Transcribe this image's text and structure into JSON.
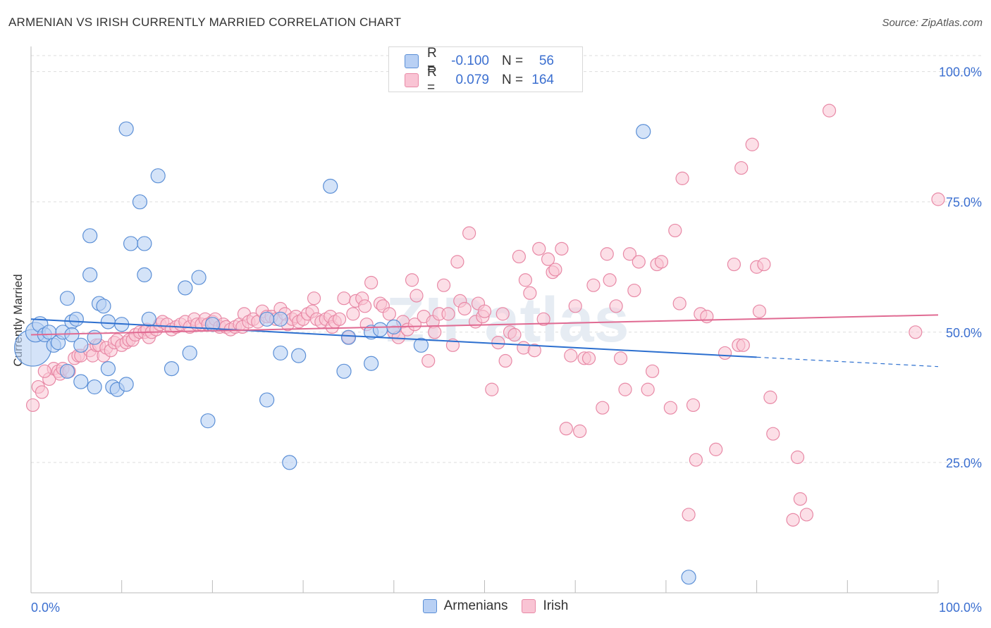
{
  "title": "ARMENIAN VS IRISH CURRENTLY MARRIED CORRELATION CHART",
  "source": "Source: ZipAtlas.com",
  "watermark": "ZIPatlas",
  "legend_top": {
    "rows": [
      {
        "r_label": "R =",
        "r_value": "-0.100",
        "n_label": "N =",
        "n_value": "56"
      },
      {
        "r_label": "R =",
        "r_value": "0.079",
        "n_label": "N =",
        "n_value": "164"
      }
    ]
  },
  "colors": {
    "armenian_fill": "#b8d0f4",
    "armenian_stroke": "#5b8fd6",
    "armenian_line": "#2c6fcf",
    "irish_fill": "#f9c4d4",
    "irish_stroke": "#e889a6",
    "irish_line": "#e06a92",
    "tick_label": "#3b6fd0",
    "grid": "#dddddd"
  },
  "chart_data": {
    "type": "scatter",
    "title": "ARMENIAN VS IRISH CURRENTLY MARRIED CORRELATION CHART",
    "xlabel": "",
    "ylabel": "Currently Married",
    "xlim": [
      0,
      100
    ],
    "ylim": [
      0,
      104
    ],
    "x_tick_labels": [
      {
        "value": 0,
        "label": "0.0%"
      },
      {
        "value": 100,
        "label": "100.0%"
      }
    ],
    "y_tick_labels": [
      {
        "value": 25,
        "label": "25.0%"
      },
      {
        "value": 50,
        "label": "50.0%"
      },
      {
        "value": 75,
        "label": "75.0%"
      },
      {
        "value": 100,
        "label": "100.0%"
      }
    ],
    "grid": true,
    "legend_position": "bottom-center",
    "series": [
      {
        "name": "Armenians",
        "r": -0.1,
        "n": 56,
        "trend": {
          "x0": 0,
          "y0": 52.5,
          "x1": 80,
          "y1": 45.2,
          "dash_x1": 100,
          "dash_y1": 43.4
        },
        "points": [
          [
            0.2,
            47,
            26
          ],
          [
            0.5,
            50,
            14
          ],
          [
            1,
            51.5,
            11
          ],
          [
            1.5,
            49.5,
            10
          ],
          [
            2,
            50,
            10
          ],
          [
            2.5,
            47.5,
            10
          ],
          [
            3,
            48,
            10
          ],
          [
            3.5,
            50,
            10
          ],
          [
            4,
            42.5,
            10
          ],
          [
            4,
            56.5,
            10
          ],
          [
            4.5,
            52,
            10
          ],
          [
            4.5,
            49.5,
            10
          ],
          [
            5,
            52.5,
            10
          ],
          [
            5.5,
            47.5,
            10
          ],
          [
            5.5,
            40.5,
            10
          ],
          [
            6.5,
            61,
            10
          ],
          [
            6.5,
            68.5,
            10
          ],
          [
            7,
            39.5,
            10
          ],
          [
            7,
            49,
            10
          ],
          [
            7.5,
            55.5,
            10
          ],
          [
            8,
            55,
            10
          ],
          [
            8.5,
            52,
            10
          ],
          [
            8.5,
            43,
            10
          ],
          [
            9,
            39.5,
            10
          ],
          [
            9.5,
            39,
            10
          ],
          [
            10,
            51.5,
            10
          ],
          [
            10.5,
            89,
            10
          ],
          [
            10.5,
            40,
            10
          ],
          [
            11,
            67,
            10
          ],
          [
            12,
            75,
            10
          ],
          [
            12.5,
            61,
            10
          ],
          [
            12.5,
            67,
            10
          ],
          [
            13,
            52.5,
            10
          ],
          [
            14,
            80,
            10
          ],
          [
            15.5,
            43,
            10
          ],
          [
            17,
            58.5,
            10
          ],
          [
            17.5,
            46,
            10
          ],
          [
            18.5,
            60.5,
            10
          ],
          [
            19.5,
            33,
            10
          ],
          [
            26,
            37,
            10
          ],
          [
            27.5,
            46,
            10
          ],
          [
            27.5,
            52.5,
            10
          ],
          [
            28.5,
            25,
            10
          ],
          [
            29.5,
            45.5,
            10
          ],
          [
            33,
            78,
            10
          ],
          [
            34.5,
            42.5,
            10
          ],
          [
            35,
            49,
            10
          ],
          [
            37.5,
            50,
            10
          ],
          [
            37.5,
            44,
            10
          ],
          [
            38.5,
            50.5,
            10
          ],
          [
            40,
            51,
            10
          ],
          [
            43,
            47.5,
            10
          ],
          [
            67.5,
            88.5,
            10
          ],
          [
            72.5,
            3,
            10
          ],
          [
            26,
            52.5,
            10
          ],
          [
            20,
            51.5,
            10
          ]
        ]
      },
      {
        "name": "Irish",
        "r": 0.079,
        "n": 164,
        "trend": {
          "x0": 0,
          "y0": 49.5,
          "x1": 100,
          "y1": 53.3
        },
        "points": [
          [
            0.2,
            36
          ],
          [
            0.8,
            39.5
          ],
          [
            1.2,
            38.5
          ],
          [
            2,
            41
          ],
          [
            2.5,
            43
          ],
          [
            3,
            42.5
          ],
          [
            3.2,
            42
          ],
          [
            3.5,
            43
          ],
          [
            4.2,
            42.5
          ],
          [
            4.8,
            45
          ],
          [
            5.2,
            45.5
          ],
          [
            5.5,
            45.5
          ],
          [
            6.5,
            46.5
          ],
          [
            6.8,
            45.5
          ],
          [
            7.2,
            47.5
          ],
          [
            7.5,
            47.5
          ],
          [
            8,
            45.5
          ],
          [
            8.3,
            47
          ],
          [
            8.8,
            46.5
          ],
          [
            9.2,
            48
          ],
          [
            9.5,
            48.5
          ],
          [
            10,
            47.5
          ],
          [
            10.5,
            48
          ],
          [
            10.8,
            48.5
          ],
          [
            11.2,
            48.5
          ],
          [
            11.5,
            49.5
          ],
          [
            12,
            50
          ],
          [
            12.5,
            50
          ],
          [
            12.8,
            50.5
          ],
          [
            13,
            49
          ],
          [
            13.3,
            50
          ],
          [
            13.8,
            50.5
          ],
          [
            14.2,
            51.5
          ],
          [
            14.5,
            52
          ],
          [
            15,
            51.5
          ],
          [
            15.5,
            50.5
          ],
          [
            16,
            51
          ],
          [
            16.5,
            51.5
          ],
          [
            17,
            52
          ],
          [
            17.5,
            51
          ],
          [
            18,
            52.5
          ],
          [
            18.3,
            51.5
          ],
          [
            18.8,
            51.5
          ],
          [
            19.2,
            52.5
          ],
          [
            19.5,
            51.5
          ],
          [
            20,
            52
          ],
          [
            20.3,
            52.5
          ],
          [
            20.8,
            51
          ],
          [
            21.2,
            51.5
          ],
          [
            21.5,
            51
          ],
          [
            22,
            50.5
          ],
          [
            22.5,
            51
          ],
          [
            23,
            51.5
          ],
          [
            23.3,
            51
          ],
          [
            23.5,
            53.5
          ],
          [
            24,
            52
          ],
          [
            24.5,
            52.5
          ],
          [
            25,
            52
          ],
          [
            25.5,
            54
          ],
          [
            26,
            53
          ],
          [
            26.5,
            53
          ],
          [
            27,
            52.5
          ],
          [
            27.5,
            54.5
          ],
          [
            28,
            53.5
          ],
          [
            28.3,
            51.5
          ],
          [
            28.8,
            52.5
          ],
          [
            29.2,
            53
          ],
          [
            29.5,
            52
          ],
          [
            30,
            52.5
          ],
          [
            30.5,
            53.5
          ],
          [
            31,
            54
          ],
          [
            31.2,
            56.5
          ],
          [
            31.5,
            52.5
          ],
          [
            32,
            52
          ],
          [
            32.5,
            52.5
          ],
          [
            33,
            53
          ],
          [
            33.2,
            51
          ],
          [
            33.5,
            52
          ],
          [
            34,
            52.5
          ],
          [
            34.5,
            56.5
          ],
          [
            35,
            49
          ],
          [
            35.5,
            53.5
          ],
          [
            35.8,
            56
          ],
          [
            36.5,
            56.5
          ],
          [
            36.8,
            55
          ],
          [
            37,
            51.5
          ],
          [
            37.5,
            59.5
          ],
          [
            38.5,
            55.5
          ],
          [
            38.8,
            55
          ],
          [
            39.5,
            53.5
          ],
          [
            40,
            50
          ],
          [
            40.5,
            49
          ],
          [
            41,
            52
          ],
          [
            41.5,
            50.5
          ],
          [
            42,
            60
          ],
          [
            42.3,
            51.5
          ],
          [
            42.5,
            57
          ],
          [
            43.3,
            53
          ],
          [
            43.8,
            44.5
          ],
          [
            44.3,
            52
          ],
          [
            44.5,
            50
          ],
          [
            45,
            53.5
          ],
          [
            45.5,
            59
          ],
          [
            46,
            53.5
          ],
          [
            46.5,
            47.5
          ],
          [
            47,
            63.5
          ],
          [
            47.3,
            56
          ],
          [
            47.8,
            54.5
          ],
          [
            48.3,
            69
          ],
          [
            49,
            52
          ],
          [
            49.3,
            55.5
          ],
          [
            49.8,
            53
          ],
          [
            50,
            54
          ],
          [
            50.8,
            39
          ],
          [
            51.5,
            48
          ],
          [
            52,
            53.5
          ],
          [
            52.3,
            44.5
          ],
          [
            52.8,
            50
          ],
          [
            53.3,
            49.5
          ],
          [
            53.8,
            64.5
          ],
          [
            54.3,
            47
          ],
          [
            54.5,
            60
          ],
          [
            55,
            57.5
          ],
          [
            55.5,
            46.5
          ],
          [
            56,
            66
          ],
          [
            56.5,
            52.5
          ],
          [
            57,
            64
          ],
          [
            57.5,
            61.5
          ],
          [
            57.8,
            62
          ],
          [
            58.5,
            66
          ],
          [
            59,
            31.5
          ],
          [
            59.5,
            45.5
          ],
          [
            60,
            55
          ],
          [
            60.5,
            31
          ],
          [
            61,
            45
          ],
          [
            61.5,
            45
          ],
          [
            62,
            59
          ],
          [
            63,
            35.5
          ],
          [
            63.5,
            65
          ],
          [
            63.8,
            60
          ],
          [
            64.5,
            55
          ],
          [
            65,
            45
          ],
          [
            65.5,
            39
          ],
          [
            66,
            65
          ],
          [
            66.5,
            58
          ],
          [
            67,
            63.5
          ],
          [
            68,
            39
          ],
          [
            68.5,
            42.5
          ],
          [
            69,
            63
          ],
          [
            69.5,
            63.5
          ],
          [
            70.5,
            35.5
          ],
          [
            71,
            69.5
          ],
          [
            71.5,
            55.5
          ],
          [
            71.8,
            79.5
          ],
          [
            72.5,
            15
          ],
          [
            73,
            36
          ],
          [
            73.3,
            25.5
          ],
          [
            73.8,
            53.5
          ],
          [
            74.5,
            53
          ],
          [
            75.5,
            27.5
          ],
          [
            76.5,
            46
          ],
          [
            77.5,
            63
          ],
          [
            78,
            47.5
          ],
          [
            78.3,
            81.5
          ],
          [
            78.5,
            47.5
          ],
          [
            79.5,
            86
          ],
          [
            80,
            62.5
          ],
          [
            80.3,
            54
          ],
          [
            80.8,
            63
          ],
          [
            81.5,
            37.5
          ],
          [
            81.8,
            30.5
          ],
          [
            84,
            14
          ],
          [
            84.5,
            26
          ],
          [
            84.8,
            18
          ],
          [
            85.5,
            15
          ],
          [
            88,
            92.5
          ],
          [
            97.5,
            50
          ],
          [
            100,
            75.5
          ],
          [
            1.5,
            42.5
          ]
        ]
      }
    ]
  },
  "legend_bottom": [
    {
      "label": "Armenians"
    },
    {
      "label": "Irish"
    }
  ]
}
